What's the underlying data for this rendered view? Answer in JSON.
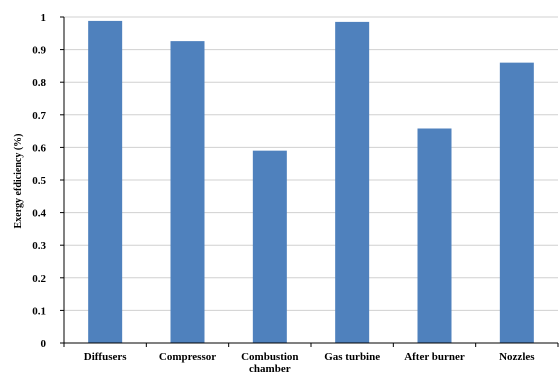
{
  "chart_data": {
    "type": "bar",
    "title": "",
    "xlabel": "",
    "ylabel": "Exergy efdiciency (%)",
    "categories": [
      "Diffusers",
      "Compressor",
      "Combustion chamber",
      "Gas turbine",
      "After burner",
      "Nozzles"
    ],
    "category_lines": [
      [
        "Diffusers"
      ],
      [
        "Compressor"
      ],
      [
        "Combustion",
        "chamber"
      ],
      [
        "Gas turbine"
      ],
      [
        "After burner"
      ],
      [
        "Nozzles"
      ]
    ],
    "values": [
      0.988,
      0.926,
      0.59,
      0.985,
      0.658,
      0.86
    ],
    "ylim": [
      0,
      1
    ],
    "yticks": [
      "0",
      "0.1",
      "0.2",
      "0.3",
      "0.4",
      "0.5",
      "0.6",
      "0.7",
      "0.8",
      "0.9",
      "1"
    ],
    "grid": true,
    "legend": "none",
    "bar_color": "#4f81bd",
    "grid_color": "#d0d0d0"
  }
}
